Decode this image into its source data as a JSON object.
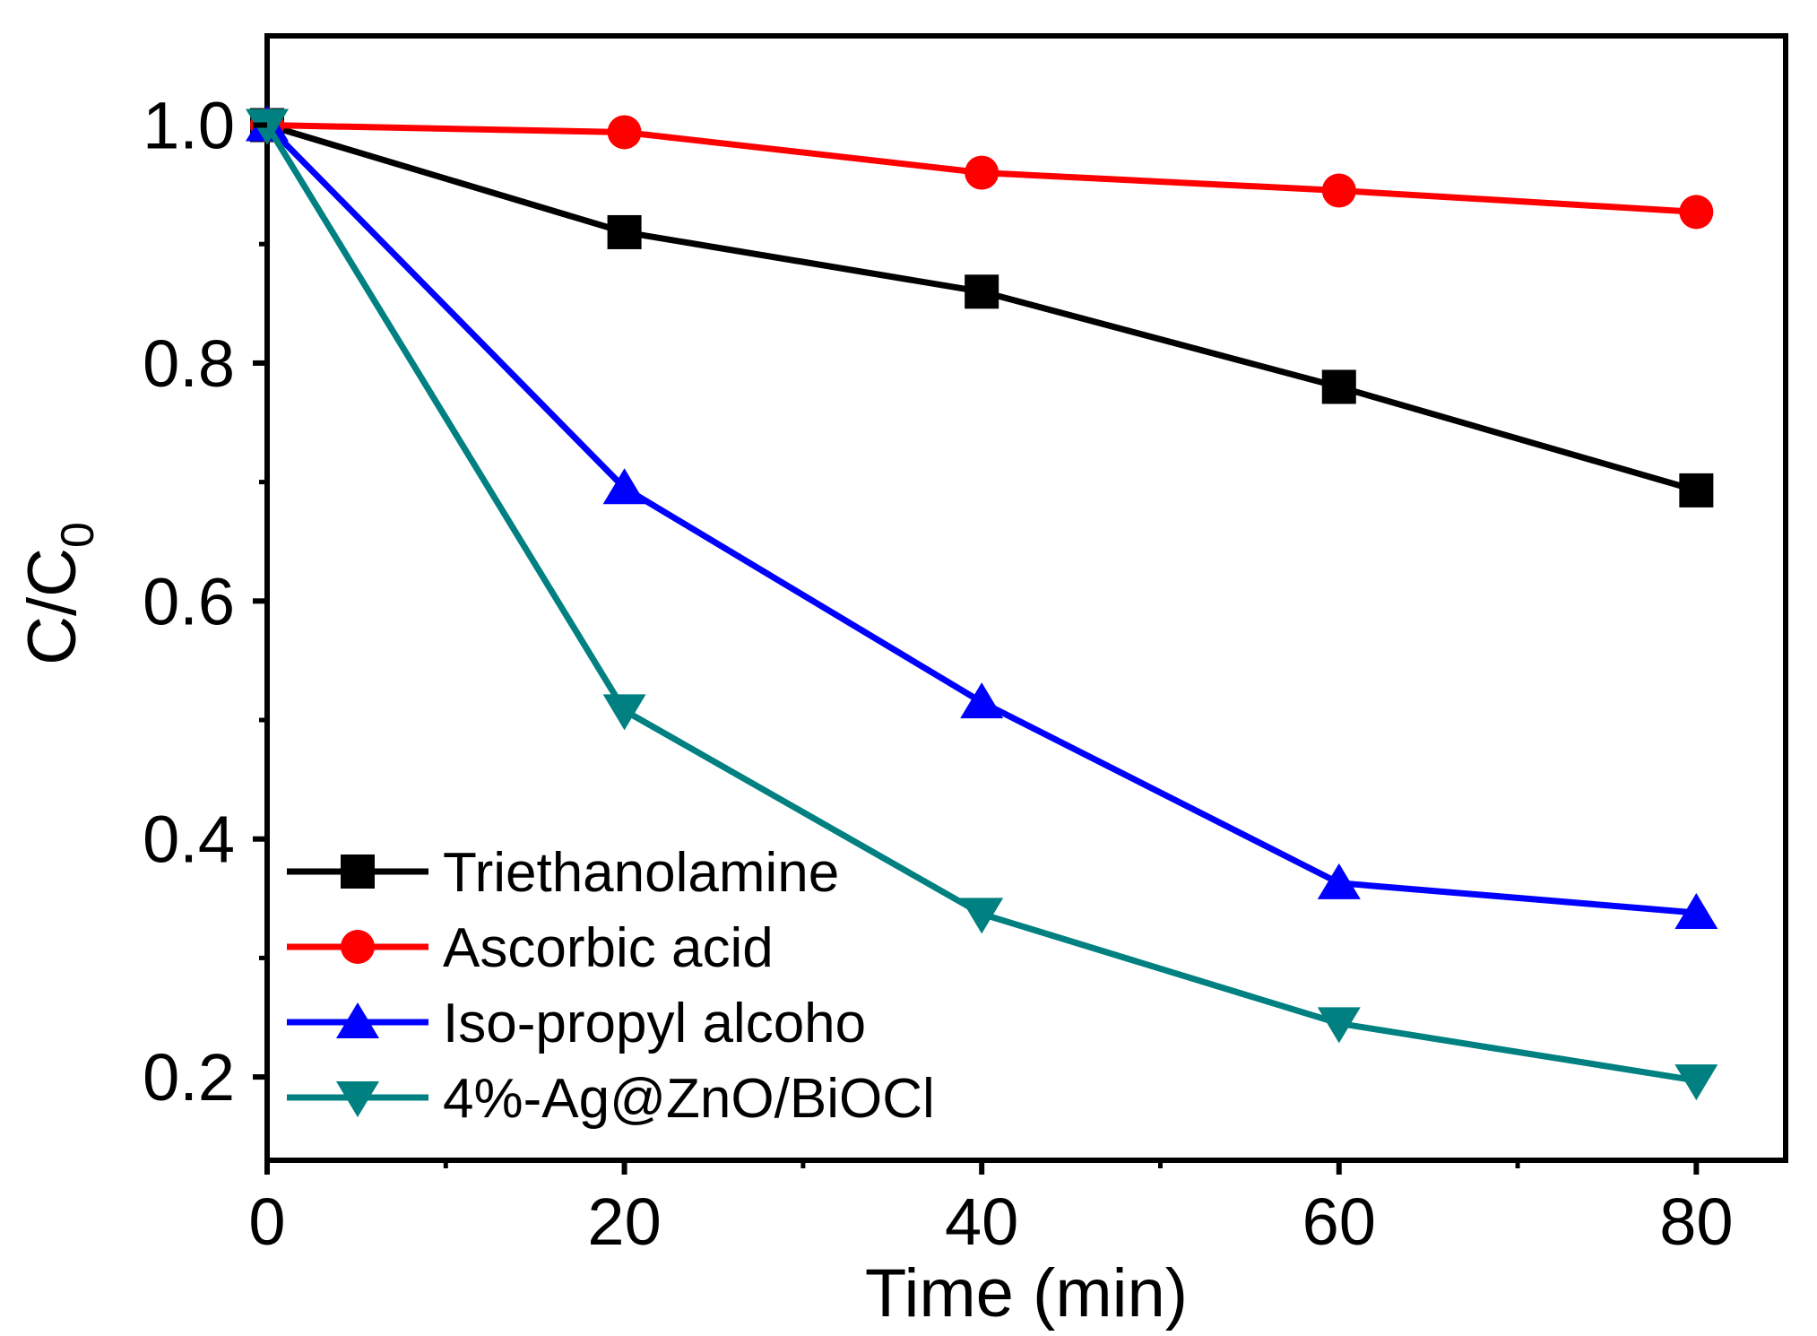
{
  "chart_data": {
    "type": "line",
    "title": "",
    "xlabel": "Time (min)",
    "ylabel": "C/C",
    "ylabel_subscript": "0",
    "xlim": [
      0,
      85
    ],
    "ylim": [
      0.13,
      1.075
    ],
    "x_ticks": [
      0,
      20,
      40,
      60,
      80
    ],
    "x_tick_labels": [
      "0",
      "20",
      "40",
      "60",
      "80"
    ],
    "x_minor_ticks": [
      10,
      30,
      50,
      70
    ],
    "y_ticks": [
      0.2,
      0.4,
      0.6,
      0.8,
      1.0
    ],
    "y_tick_labels": [
      "0.2",
      "0.4",
      "0.6",
      "0.8",
      "1.0"
    ],
    "y_minor_ticks": [
      0.3,
      0.5,
      0.7,
      0.9
    ],
    "grid": false,
    "legend_position": "bottom-left",
    "x": [
      0,
      20,
      40,
      60,
      80
    ],
    "series": [
      {
        "name": "Triethanolamine",
        "marker": "square",
        "color": "#000000",
        "values": [
          1.0,
          0.91,
          0.86,
          0.78,
          0.693
        ]
      },
      {
        "name": "Ascorbic acid",
        "marker": "circle",
        "color": "#ff0000",
        "values": [
          1.0,
          0.994,
          0.96,
          0.945,
          0.927
        ]
      },
      {
        "name": "Iso-propyl alcoho",
        "marker": "triangle-up",
        "color": "#0000ff",
        "values": [
          1.0,
          0.695,
          0.515,
          0.363,
          0.338
        ]
      },
      {
        "name": "4%-Ag@ZnO/BiOCl",
        "marker": "triangle-down",
        "color": "#008080",
        "values": [
          1.0,
          0.508,
          0.337,
          0.245,
          0.197
        ]
      }
    ]
  }
}
